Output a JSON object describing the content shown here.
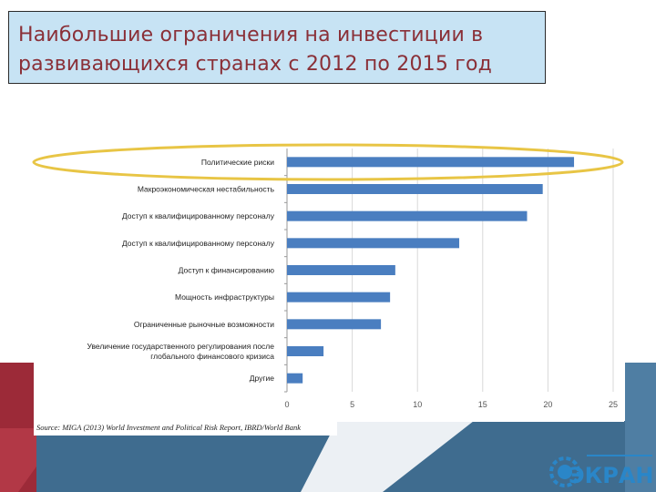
{
  "title": "Наибольшие ограничения на инвестиции в развивающихся странах с 2012 по 2015 год",
  "colors": {
    "bar": "#4a7ec0",
    "ellipse": "#e8c545",
    "title_text": "#8a3038",
    "title_bg": "#c7e3f4",
    "deco_red": "#9c2a38",
    "deco_blue": "#3f6c8f"
  },
  "logo": {
    "text": "ЭКРАН",
    "icon": "gear-icon"
  },
  "chart_data": {
    "type": "bar",
    "orientation": "horizontal",
    "categories": [
      "Политические риски",
      "Макроэкономическая нестабильность",
      "Доступ к квалифицированному персоналу",
      "Доступ к квалифицированному персоналу",
      "Доступ к финансированию",
      "Мощность инфраструктуры",
      "Ограниченные рыночные возможности",
      "Увеличение государственного регулирования после глобального финансового кризиса",
      "Другие"
    ],
    "category_lines": [
      [
        "Политические риски"
      ],
      [
        "Макроэкономическая нестабильность"
      ],
      [
        "Доступ к квалифицированному персоналу"
      ],
      [
        "Доступ к квалифицированному персоналу"
      ],
      [
        "Доступ к финансированию"
      ],
      [
        "Мощность инфраструктуры"
      ],
      [
        "Ограниченные рыночные возможности"
      ],
      [
        "Увеличение государственного регулирования после",
        "глобального финансового кризиса"
      ],
      [
        "Другие"
      ]
    ],
    "values": [
      22,
      19.6,
      18.4,
      13.2,
      8.3,
      7.9,
      7.2,
      2.8,
      1.2
    ],
    "xlim": [
      0,
      25
    ],
    "xticks": [
      "0",
      "5",
      "10",
      "15",
      "20",
      "25"
    ],
    "grid": true,
    "source": "Source: MIGA (2013) World Investment and Political Risk Report, IBRD/World Bank",
    "highlight": "Политические риски"
  }
}
